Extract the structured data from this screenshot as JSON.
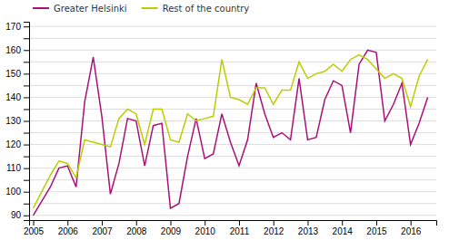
{
  "chart_data": {
    "type": "line",
    "x": [
      2005,
      2005.25,
      2005.5,
      2005.75,
      2006,
      2006.25,
      2006.5,
      2006.75,
      2007,
      2007.25,
      2007.5,
      2007.75,
      2008,
      2008.25,
      2008.5,
      2008.75,
      2009,
      2009.25,
      2009.5,
      2009.75,
      2010,
      2010.25,
      2010.5,
      2010.75,
      2011,
      2011.25,
      2011.5,
      2011.75,
      2012,
      2012.25,
      2012.5,
      2012.75,
      2013,
      2013.25,
      2013.5,
      2013.75,
      2014,
      2014.25,
      2014.5,
      2014.75,
      2015,
      2015.25,
      2015.5,
      2015.75,
      2016,
      2016.25,
      2016.5
    ],
    "series": [
      {
        "name": "Greater Helsinki",
        "color": "#aa1177",
        "values": [
          90,
          96,
          102,
          110,
          111,
          102,
          138,
          157,
          132,
          99,
          112,
          131,
          130,
          111,
          128,
          129,
          93,
          95,
          115,
          131,
          114,
          116,
          133,
          121,
          111,
          122,
          146,
          133,
          123,
          125,
          122,
          148,
          122,
          123,
          139,
          147,
          145,
          125,
          154,
          160,
          159,
          130,
          137,
          146,
          120,
          129,
          140
        ]
      },
      {
        "name": "Rest of the country",
        "color": "#bbcc00",
        "values": [
          93,
          100,
          107,
          113,
          112,
          106,
          122,
          121,
          120,
          119,
          131,
          135,
          133,
          120,
          135,
          135,
          122,
          121,
          133,
          130,
          131,
          132,
          156,
          140,
          139,
          137,
          144,
          144,
          137,
          143,
          143,
          155,
          148,
          150,
          151,
          154,
          151,
          156,
          158,
          156,
          152,
          148,
          150,
          148,
          136,
          149,
          156
        ]
      }
    ],
    "xlim": [
      2004.88,
      2016.75
    ],
    "xticks": [
      2005,
      2006,
      2007,
      2008,
      2009,
      2010,
      2011,
      2012,
      2013,
      2014,
      2015,
      2016
    ],
    "ylim": [
      88,
      172
    ],
    "yticks": [
      90,
      {
        "value": 95,
        "label": null
      },
      100,
      {
        "value": 105,
        "label": null
      },
      110,
      {
        "value": 115,
        "label": null
      },
      120,
      {
        "value": 125,
        "label": null
      },
      130,
      {
        "value": 135,
        "label": null
      },
      140,
      {
        "value": 145,
        "label": null
      },
      150,
      {
        "value": 155,
        "label": null
      },
      160,
      {
        "value": 165,
        "label": null
      },
      170
    ],
    "grid": true,
    "legend": "upper left"
  }
}
